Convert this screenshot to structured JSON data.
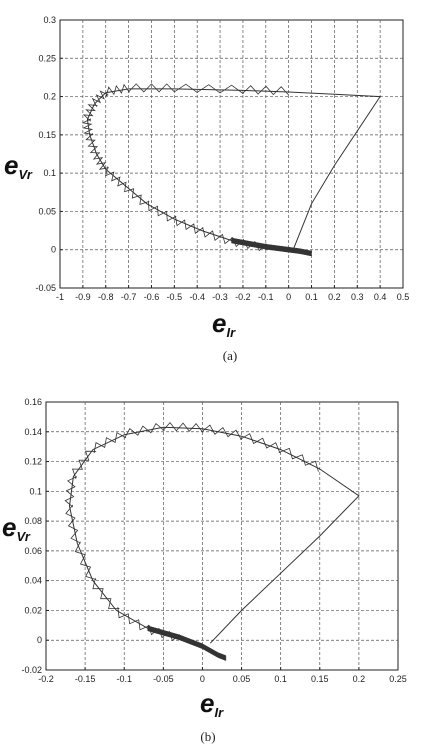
{
  "chart_data": [
    {
      "type": "line",
      "caption": "(a)",
      "xlabel_main": "e",
      "xlabel_sub": "Ir",
      "ylabel_main": "e",
      "ylabel_sub": "Vr",
      "xlim": [
        -1,
        0.5
      ],
      "ylim": [
        -0.05,
        0.3
      ],
      "xticks": [
        -1,
        -0.9,
        -0.8,
        -0.7,
        -0.6,
        -0.5,
        -0.4,
        -0.3,
        -0.2,
        -0.1,
        0,
        0.1,
        0.2,
        0.3,
        0.4,
        0.5
      ],
      "xtick_labels": [
        "-1",
        "-0.9",
        "-0.8",
        "-0.7",
        "-0.6",
        "-0.5",
        "-0.4",
        "-0.3",
        "-0.2",
        "-0.1",
        "0",
        "0.1",
        "0.2",
        "0.3",
        "0.4",
        "0.5"
      ],
      "yticks": [
        -0.05,
        0,
        0.05,
        0.1,
        0.15,
        0.2,
        0.25,
        0.3
      ],
      "ytick_labels": [
        "-0.05",
        "0",
        "0.05",
        "0.1",
        "0.15",
        "0.2",
        "0.25",
        "0.3"
      ],
      "grid": true,
      "series": [
        {
          "values": [
            [
              0.02,
              0.0
            ],
            [
              0.1,
              0.06
            ],
            [
              0.2,
              0.11
            ],
            [
              0.3,
              0.155
            ],
            [
              0.4,
              0.2
            ],
            [
              0.2,
              0.203
            ],
            [
              0.0,
              0.206
            ],
            [
              -0.2,
              0.208
            ],
            [
              -0.5,
              0.21
            ],
            [
              -0.7,
              0.21
            ],
            [
              -0.8,
              0.205
            ],
            [
              -0.85,
              0.19
            ],
            [
              -0.88,
              0.17
            ],
            [
              -0.87,
              0.15
            ],
            [
              -0.84,
              0.125
            ],
            [
              -0.8,
              0.105
            ],
            [
              -0.72,
              0.085
            ],
            [
              -0.62,
              0.06
            ],
            [
              -0.5,
              0.04
            ],
            [
              -0.38,
              0.025
            ],
            [
              -0.25,
              0.012
            ],
            [
              -0.1,
              0.004
            ],
            [
              0.0,
              0.0
            ],
            [
              0.05,
              -0.002
            ],
            [
              0.1,
              -0.005
            ]
          ]
        }
      ]
    },
    {
      "type": "line",
      "caption": "(b)",
      "xlabel_main": "e",
      "xlabel_sub": "Ir",
      "ylabel_main": "e",
      "ylabel_sub": "Vr",
      "xlim": [
        -0.2,
        0.25
      ],
      "ylim": [
        -0.02,
        0.16
      ],
      "xticks": [
        -0.2,
        -0.15,
        -0.1,
        -0.05,
        0,
        0.05,
        0.1,
        0.15,
        0.2,
        0.25
      ],
      "xtick_labels": [
        "-0.2",
        "-0.15",
        "-0.1",
        "-0.05",
        "0",
        "0.05",
        "0.1",
        "0.15",
        "0.2",
        "0.25"
      ],
      "yticks": [
        -0.02,
        0,
        0.02,
        0.04,
        0.06,
        0.08,
        0.1,
        0.12,
        0.14,
        0.16
      ],
      "ytick_labels": [
        "-0.02",
        "0",
        "0.02",
        "0.04",
        "0.06",
        "0.08",
        "0.1",
        "0.12",
        "0.14",
        "0.16"
      ],
      "grid": true,
      "series": [
        {
          "values": [
            [
              0.01,
              -0.002
            ],
            [
              0.05,
              0.02
            ],
            [
              0.1,
              0.045
            ],
            [
              0.15,
              0.07
            ],
            [
              0.2,
              0.097
            ],
            [
              0.15,
              0.115
            ],
            [
              0.1,
              0.128
            ],
            [
              0.05,
              0.137
            ],
            [
              0.0,
              0.142
            ],
            [
              -0.05,
              0.143
            ],
            [
              -0.1,
              0.138
            ],
            [
              -0.14,
              0.128
            ],
            [
              -0.165,
              0.11
            ],
            [
              -0.17,
              0.09
            ],
            [
              -0.16,
              0.065
            ],
            [
              -0.14,
              0.04
            ],
            [
              -0.11,
              0.02
            ],
            [
              -0.07,
              0.008
            ],
            [
              -0.03,
              0.002
            ],
            [
              0.0,
              -0.004
            ],
            [
              0.02,
              -0.01
            ],
            [
              0.03,
              -0.012
            ]
          ]
        }
      ]
    }
  ]
}
